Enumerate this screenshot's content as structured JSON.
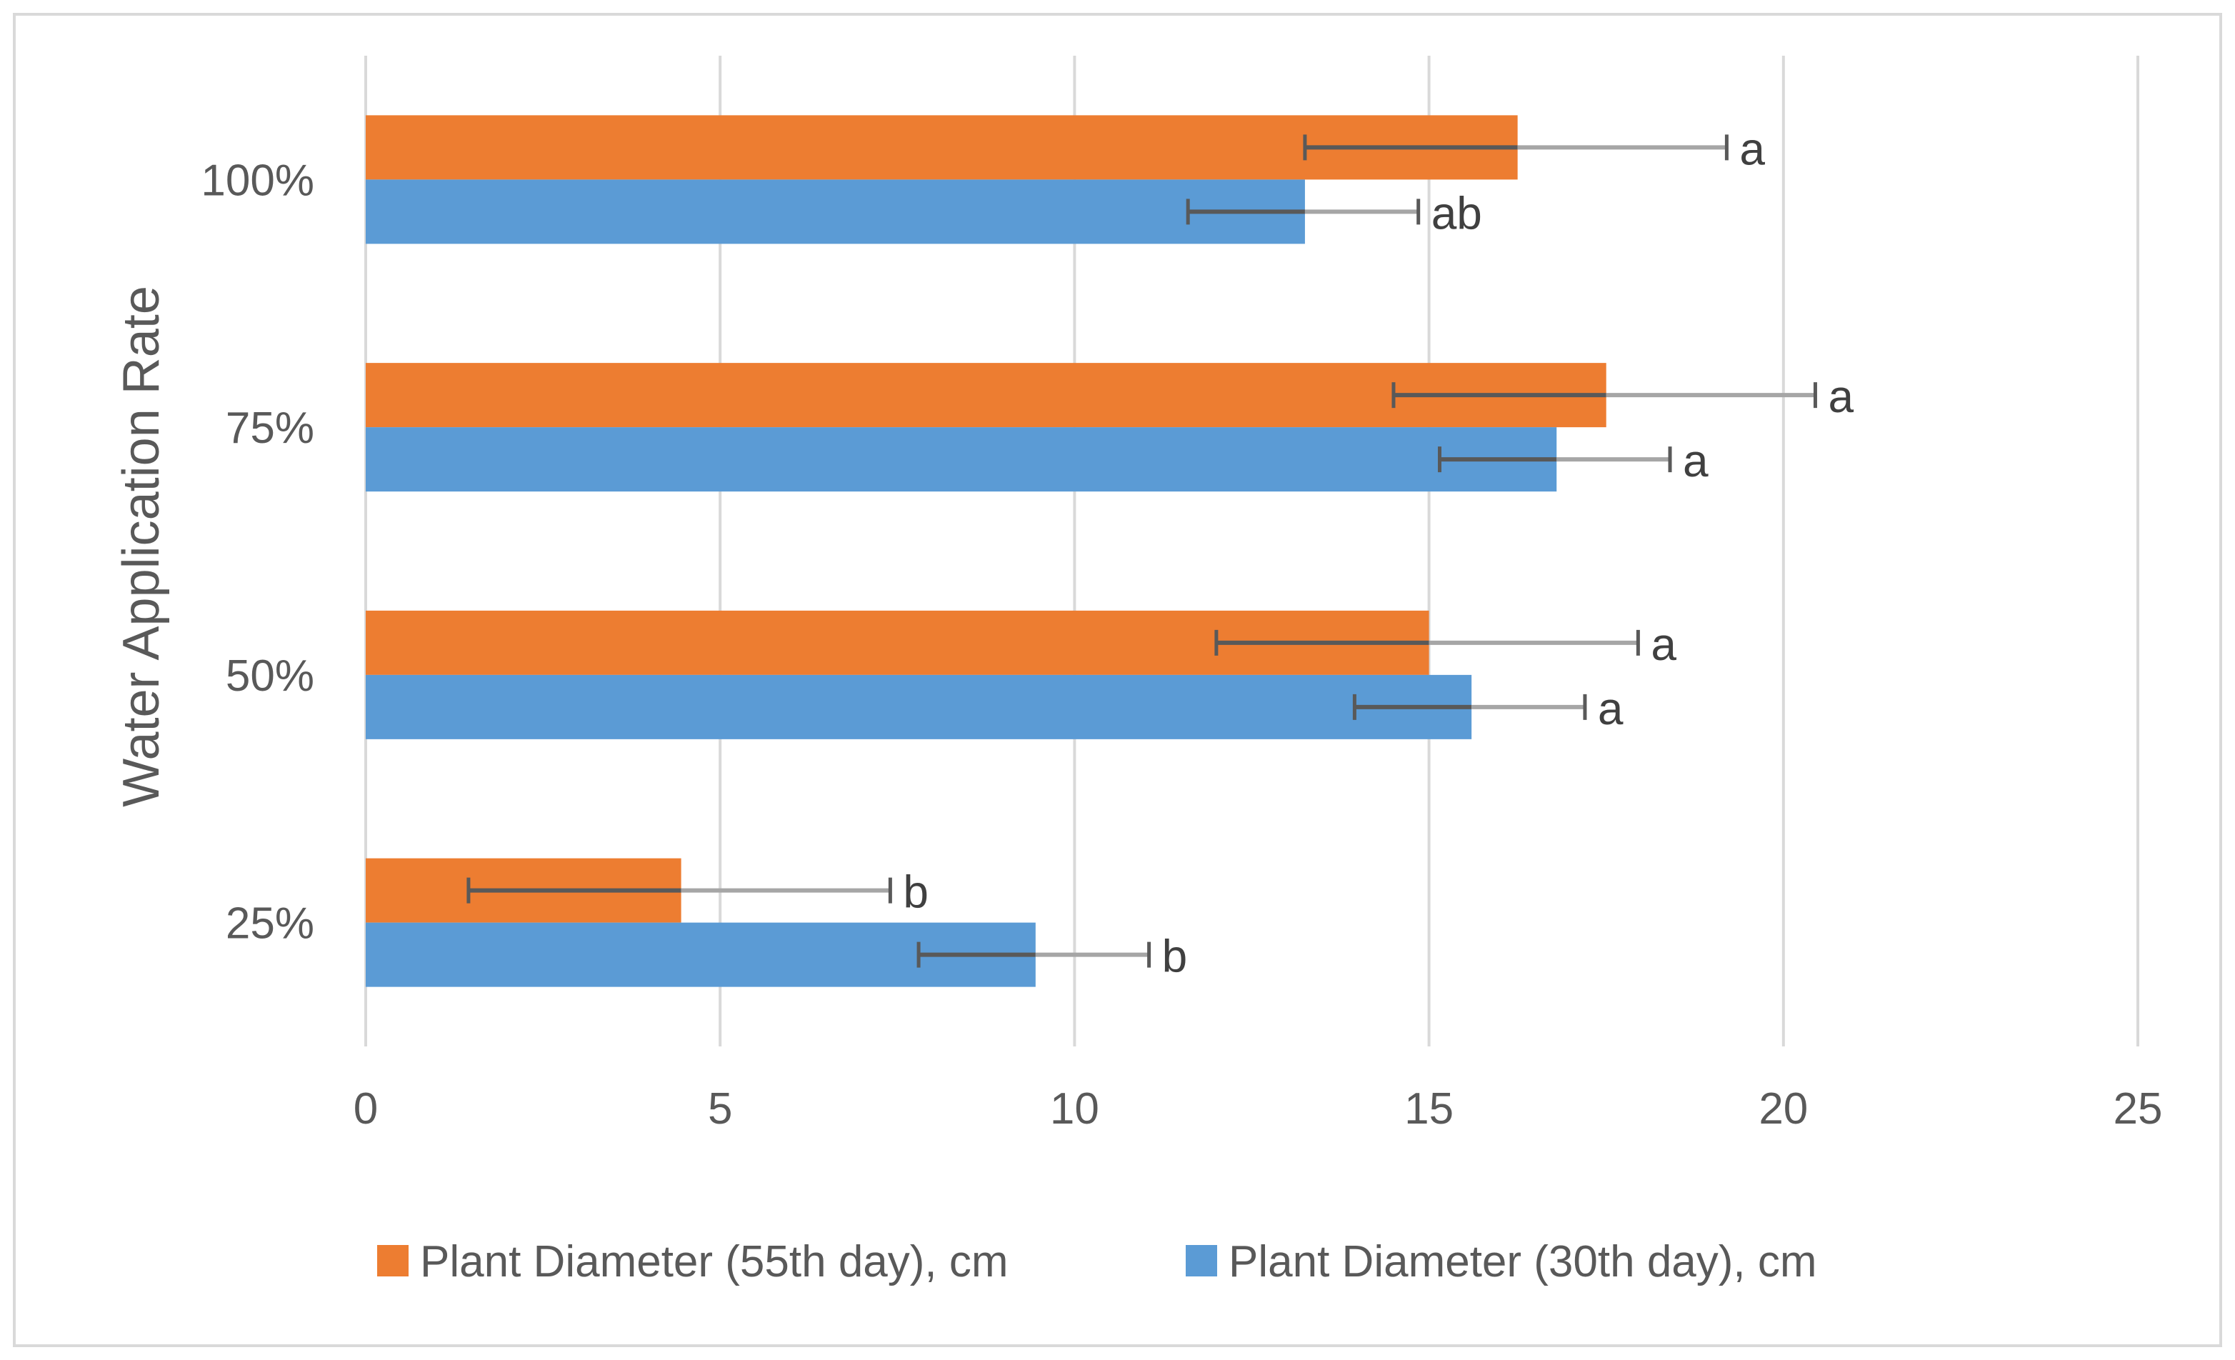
{
  "chart_data": {
    "type": "bar",
    "orientation": "horizontal",
    "title": "",
    "xlabel": "",
    "ylabel": "Water Application Rate",
    "xlim": [
      0,
      25
    ],
    "x_ticks": [
      0,
      5,
      10,
      15,
      20,
      25
    ],
    "x_tick_labels": [
      "0",
      "5",
      "10",
      "15",
      "20",
      "25"
    ],
    "grid": true,
    "legend_position": "bottom",
    "categories": [
      "25%",
      "50%",
      "75%",
      "100%"
    ],
    "series": [
      {
        "name": "Plant Diameter (55th day), cm",
        "color": "#ED7D31",
        "values": [
          4.45,
          15.0,
          17.5,
          16.25
        ],
        "error_low": [
          1.45,
          12.0,
          14.5,
          13.25
        ],
        "error_high": [
          7.4,
          17.95,
          20.45,
          19.2
        ],
        "significance": [
          "b",
          "a",
          "a",
          "a"
        ]
      },
      {
        "name": "Plant Diameter (30th day), cm",
        "color": "#5B9BD5",
        "values": [
          9.45,
          15.6,
          16.8,
          13.25
        ],
        "error_low": [
          7.8,
          13.95,
          15.15,
          11.6
        ],
        "error_high": [
          11.05,
          17.2,
          18.4,
          14.85
        ],
        "significance": [
          "b",
          "a",
          "a",
          "ab"
        ]
      }
    ],
    "colors": {
      "grid": "#D9D9D9",
      "error_bar": "#595959",
      "error_bar_light": "#A6A6A6",
      "frame": "#D9D9D9",
      "text": "#595959"
    }
  }
}
